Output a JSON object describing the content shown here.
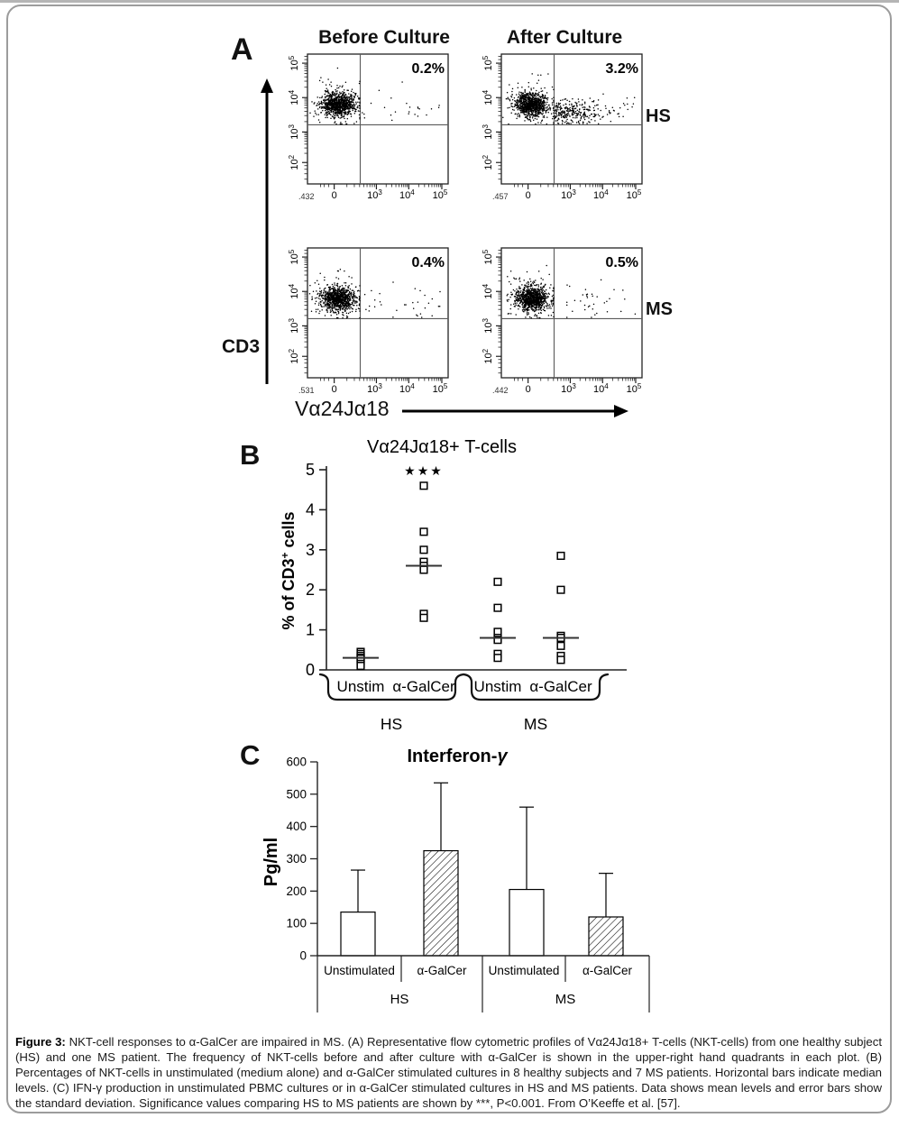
{
  "page": {
    "background": "#ffffff",
    "top_bar_color": "#b5b5b5",
    "figure_border_color": "#9c9c9c"
  },
  "panel_a": {
    "label": "A",
    "column_titles": [
      "Before Culture",
      "After Culture"
    ],
    "row_labels": [
      "HS",
      "MS"
    ],
    "y_axis_label": "CD3",
    "x_axis_label": "Vα24Jα18",
    "y_tick_exponents": [
      5,
      4,
      3,
      2
    ],
    "x_tick_exponents": [
      3,
      4,
      5
    ],
    "x_zero_tick": "0"
  },
  "panel_b": {
    "label": "B"
  },
  "panel_c": {
    "label": "C"
  },
  "chart_data": [
    {
      "type": "scatter",
      "panel": "A",
      "subtype": "flow-cytometry-dot-plots",
      "x_axis": "Vα24Jα18",
      "y_axis": "CD3",
      "x_scale_ticks": [
        "0",
        "10^3",
        "10^4",
        "10^5"
      ],
      "y_scale_ticks": [
        "10^2",
        "10^3",
        "10^4",
        "10^5"
      ],
      "plots": [
        {
          "row": "HS",
          "column": "Before Culture",
          "quadrant_pct": "0.2%",
          "pct_value": 0.2,
          "corner_label": ".432"
        },
        {
          "row": "HS",
          "column": "After Culture",
          "quadrant_pct": "3.2%",
          "pct_value": 3.2,
          "corner_label": ".457"
        },
        {
          "row": "MS",
          "column": "Before Culture",
          "quadrant_pct": "0.4%",
          "pct_value": 0.4,
          "corner_label": ".531"
        },
        {
          "row": "MS",
          "column": "After Culture",
          "quadrant_pct": "0.5%",
          "pct_value": 0.5,
          "corner_label": ".442"
        }
      ]
    },
    {
      "type": "scatter",
      "panel": "B",
      "title": "Vα24Jα18+ T-cells",
      "ylabel": "% of CD3+ cells",
      "ylabel_parts": [
        "% of CD3",
        "+",
        " cells"
      ],
      "ylim": [
        0,
        5
      ],
      "yticks": [
        0,
        1,
        2,
        3,
        4,
        5
      ],
      "marker": "open-square",
      "median_marker": "horizontal-bar",
      "groups": [
        {
          "label": "Unstim",
          "cohort": "HS",
          "values": [
            0.45,
            0.4,
            0.35,
            0.3,
            0.28,
            0.22,
            0.15,
            0.1
          ],
          "median": 0.3
        },
        {
          "label": "α-GalCer",
          "cohort": "HS",
          "values": [
            4.6,
            3.45,
            3.0,
            2.7,
            2.6,
            2.5,
            1.4,
            1.3
          ],
          "median": 2.6,
          "significance": "***"
        },
        {
          "label": "Unstim",
          "cohort": "MS",
          "values": [
            2.2,
            1.55,
            0.95,
            0.8,
            0.75,
            0.4,
            0.3
          ],
          "median": 0.8
        },
        {
          "label": "α-GalCer",
          "cohort": "MS",
          "values": [
            2.85,
            2.0,
            0.85,
            0.8,
            0.6,
            0.35,
            0.25
          ],
          "median": 0.8
        }
      ],
      "cohort_labels": [
        "HS",
        "MS"
      ]
    },
    {
      "type": "bar",
      "panel": "C",
      "title": "Interferon-γ",
      "ylabel": "Pg/ml",
      "ylim": [
        0,
        600
      ],
      "yticks": [
        0,
        100,
        200,
        300,
        400,
        500,
        600
      ],
      "categories": [
        "Unstimulated",
        "α-GalCer",
        "Unstimulated",
        "α-GalCer"
      ],
      "group_labels": [
        "HS",
        "MS"
      ],
      "values": [
        135,
        325,
        205,
        120
      ],
      "error_bar_tops": [
        265,
        535,
        460,
        255
      ],
      "hatched": [
        false,
        true,
        false,
        true
      ],
      "error_bars": "standard deviation (upper only)"
    }
  ],
  "caption": {
    "label": "Figure 3:",
    "text": " NKT-cell responses to α-GalCer are impaired in MS. (A) Representative flow cytometric profiles of Vα24Jα18+ T-cells (NKT-cells) from one healthy subject (HS) and one MS patient. The frequency of NKT-cells before and after culture with α-GalCer is shown in the upper-right hand quadrants in each plot. (B) Percentages of NKT-cells in unstimulated (medium alone) and α-GalCer stimulated cultures in 8 healthy subjects and 7 MS patients. Horizontal bars indicate median levels. (C) IFN-γ production in unstimulated PBMC cultures or in α-GalCer stimulated cultures in HS and MS patients. Data shows mean levels and error bars show the standard deviation. Significance values comparing HS to MS patients are shown by ***, P<0.001. From O’Keeffe et al. [57]."
  }
}
